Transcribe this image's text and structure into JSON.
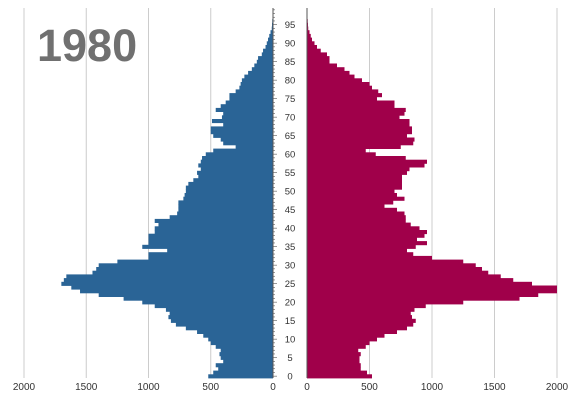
{
  "year_label": "1980",
  "chart_data": {
    "type": "bar",
    "orientation": "horizontal",
    "layout": "population-pyramid",
    "title": "1980",
    "grid": true,
    "colors": {
      "left": "#2a6496",
      "right": "#a0004a",
      "grid": "#cccccc",
      "text": "#333333"
    },
    "age_ticks": [
      0,
      5,
      10,
      15,
      20,
      25,
      30,
      35,
      40,
      45,
      50,
      55,
      60,
      65,
      70,
      75,
      80,
      85,
      90,
      95
    ],
    "left_axis": {
      "xlim": [
        0,
        2000
      ],
      "ticks": [
        2000,
        1500,
        1000,
        500,
        0
      ],
      "reversed": true
    },
    "right_axis": {
      "xlim": [
        0,
        2000
      ],
      "ticks": [
        0,
        500,
        1000,
        1500,
        2000
      ]
    },
    "ages": [
      0,
      1,
      2,
      3,
      4,
      5,
      6,
      7,
      8,
      9,
      10,
      11,
      12,
      13,
      14,
      15,
      16,
      17,
      18,
      19,
      20,
      21,
      22,
      23,
      24,
      25,
      26,
      27,
      28,
      29,
      30,
      31,
      32,
      33,
      34,
      35,
      36,
      37,
      38,
      39,
      40,
      41,
      42,
      43,
      44,
      45,
      46,
      47,
      48,
      49,
      50,
      51,
      52,
      53,
      54,
      55,
      56,
      57,
      58,
      59,
      60,
      61,
      62,
      63,
      64,
      65,
      66,
      67,
      68,
      69,
      70,
      71,
      72,
      73,
      74,
      75,
      76,
      77,
      78,
      79,
      80,
      81,
      82,
      83,
      84,
      85,
      86,
      87,
      88,
      89,
      90,
      91,
      92,
      93,
      94,
      95,
      96,
      97,
      98,
      99
    ],
    "series": [
      {
        "side": "left",
        "values": [
          520,
          480,
          440,
          460,
          400,
          420,
          430,
          420,
          460,
          500,
          520,
          560,
          610,
          700,
          780,
          820,
          840,
          830,
          860,
          950,
          1050,
          1200,
          1400,
          1550,
          1620,
          1700,
          1680,
          1660,
          1450,
          1420,
          1400,
          1250,
          1000,
          1000,
          850,
          1050,
          1000,
          1000,
          1000,
          950,
          950,
          920,
          950,
          830,
          770,
          760,
          760,
          760,
          720,
          710,
          700,
          700,
          680,
          640,
          600,
          610,
          580,
          600,
          580,
          570,
          540,
          480,
          300,
          400,
          420,
          480,
          500,
          500,
          400,
          490,
          410,
          400,
          460,
          420,
          380,
          350,
          350,
          300,
          270,
          260,
          250,
          230,
          200,
          170,
          150,
          130,
          120,
          90,
          80,
          60,
          50,
          40,
          30,
          20,
          10,
          8,
          6,
          4,
          2,
          1
        ]
      },
      {
        "side": "right",
        "values": [
          520,
          480,
          430,
          430,
          420,
          420,
          430,
          410,
          470,
          500,
          560,
          620,
          720,
          800,
          850,
          870,
          840,
          830,
          860,
          950,
          1250,
          1700,
          1850,
          2000,
          2000,
          1800,
          1650,
          1550,
          1450,
          1400,
          1350,
          1250,
          1000,
          850,
          800,
          870,
          960,
          880,
          940,
          960,
          900,
          830,
          790,
          790,
          780,
          720,
          620,
          690,
          780,
          720,
          700,
          760,
          760,
          760,
          760,
          800,
          820,
          940,
          960,
          790,
          550,
          470,
          750,
          850,
          860,
          800,
          840,
          840,
          820,
          820,
          740,
          780,
          790,
          700,
          700,
          560,
          600,
          570,
          520,
          500,
          440,
          380,
          340,
          300,
          240,
          180,
          180,
          160,
          110,
          80,
          60,
          40,
          30,
          20,
          10,
          8,
          6,
          4,
          2,
          1
        ]
      }
    ]
  }
}
